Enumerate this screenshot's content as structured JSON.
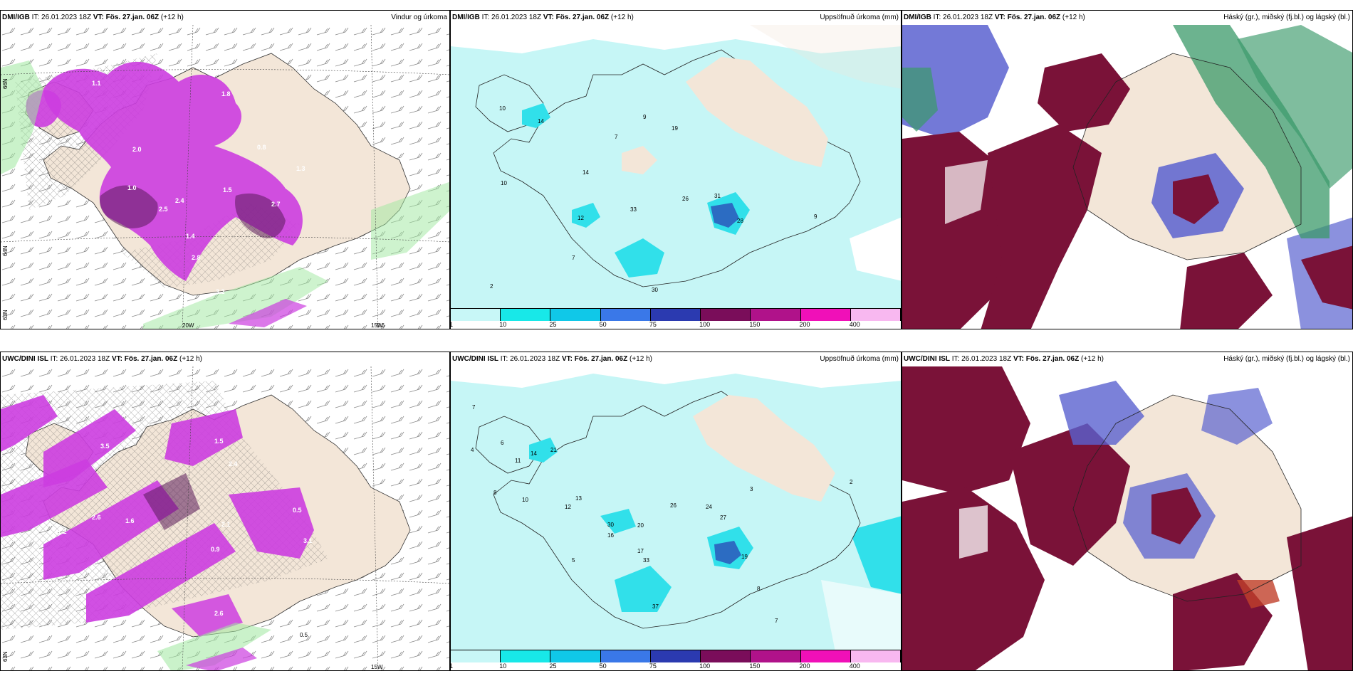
{
  "panels": {
    "p1": {
      "model": "DMI/IGB",
      "it": "IT: 26.01.2023 18Z",
      "vt": "VT: Fös. 27.jan. 06Z",
      "lead": "(+12 h)",
      "right": "Vindur og úrkoma"
    },
    "p2": {
      "model": "DMI/IGB",
      "it": "IT: 26.01.2023 18Z",
      "vt": "VT: Fös. 27.jan. 06Z",
      "lead": "(+12 h)",
      "right": "Uppsöfnuð úrkoma (mm)"
    },
    "p3": {
      "model": "DMI/IGB",
      "it": "IT: 26.01.2023 18Z",
      "vt": "VT: Fös. 27.jan. 06Z",
      "lead": "(+12 h)",
      "right": "Háský (gr.), miðský (fj.bl.) og lágský (bl.)"
    },
    "p4": {
      "model": "UWC/DINI ISL",
      "it": "IT: 26.01.2023 18Z",
      "vt": "VT: Fös. 27.jan. 06Z",
      "lead": "(+12 h)",
      "right": ""
    },
    "p5": {
      "model": "UWC/DINI ISL",
      "it": "IT: 26.01.2023 18Z",
      "vt": "VT: Fös. 27.jan. 06Z",
      "lead": "(+12 h)",
      "right": "Uppsöfnuð úrkoma (mm)"
    },
    "p6": {
      "model": "UWC/DINI ISL",
      "it": "IT: 26.01.2023 18Z",
      "vt": "VT: Fös. 27.jan. 06Z",
      "lead": "(+12 h)",
      "right": "Háský (gr.), miðský (fj.bl.) og lágský (bl.)"
    }
  },
  "axes": {
    "n66": "66N",
    "n64": "64N",
    "n63": "63N",
    "w20": "20W",
    "w15": "15W"
  },
  "colorbar": {
    "labels": [
      "1",
      "10",
      "25",
      "50",
      "75",
      "100",
      "150",
      "200",
      "400"
    ],
    "colors": [
      "#c8f7f7",
      "#18e8e8",
      "#10c8e8",
      "#3a78e8",
      "#2b3ab0",
      "#7a0d5a",
      "#b0128a",
      "#f010b8",
      "#f8b8f0"
    ]
  },
  "wind_values": {
    "p1": [
      "1.1",
      "2.0",
      "2.4",
      "2.5",
      "2.7",
      "2.8",
      "1.8",
      "1.5",
      "1.4",
      "1.0",
      "3.2",
      "0.8",
      "1.3",
      "0.6"
    ],
    "p4": [
      "3.5",
      "2.6",
      "1.6",
      "1.2",
      "2.4",
      "2.1",
      "1.5",
      "0.5",
      "3.1",
      "0.9",
      "2.6",
      "0.5"
    ]
  },
  "precip_values": {
    "p2": [
      "10",
      "14",
      "7",
      "9",
      "19",
      "14",
      "10",
      "12",
      "33",
      "26",
      "31",
      "2",
      "7",
      "30",
      "28",
      "9"
    ],
    "p5": [
      "7",
      "4",
      "6",
      "11",
      "14",
      "21",
      "8",
      "10",
      "12",
      "13",
      "16",
      "30",
      "20",
      "26",
      "24",
      "27",
      "19",
      "33",
      "37",
      "17",
      "8",
      "3",
      "2",
      "5",
      "7"
    ]
  },
  "colors": {
    "land": "#f3e6d8",
    "sea": "#ffffff",
    "precip_purple": "#cc3de0",
    "precip_dark": "#5a1a5a",
    "precip_green": "#9ee89e",
    "cyan_light": "#c6f6f6",
    "cyan": "#31e0ea",
    "cloud_dark": "#7a1238",
    "cloud_blue": "#5a62d0",
    "cloud_green": "#3b9a6a"
  }
}
